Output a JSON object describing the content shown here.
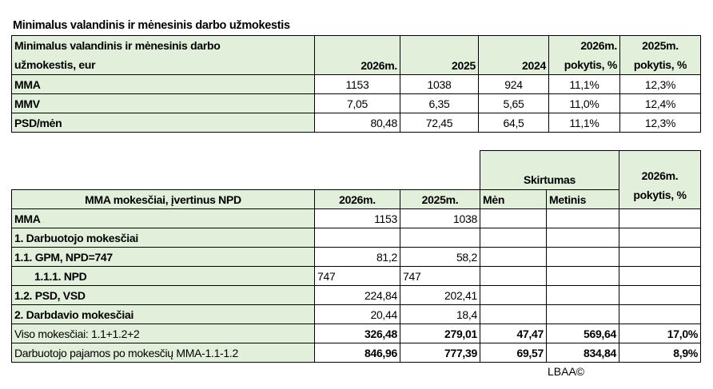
{
  "title": "Minimalus valandinis ir mėnesinis darbo užmokestis",
  "table1": {
    "header": {
      "label_line1": "Minimalus valandinis ir mėnesinis darbo",
      "label_line2": "užmokestis, eur",
      "c1": "2026m.",
      "c2": "2025",
      "c3": "2024",
      "c4_line1": "2026m.",
      "c4_line2": "pokytis, %",
      "c5_line1": "2025m.",
      "c5_line2": "pokytis, %"
    },
    "rows": [
      {
        "label": "MMA",
        "v": [
          "1153",
          "1038",
          "924",
          "11,1%",
          "12,3%"
        ]
      },
      {
        "label": "MMV",
        "v": [
          "7,05",
          "6,35",
          "5,65",
          "11,0%",
          "12,4%"
        ]
      },
      {
        "label": "PSD/mėn",
        "v": [
          "80,48",
          "72,45",
          "64,5",
          "11,1%",
          "12,3%"
        ]
      }
    ]
  },
  "table2": {
    "header": {
      "skirtumas": "Skirtumas",
      "change_line1": "2026m.",
      "change_line2": "pokytis, %",
      "label": "MMA mokesčiai, įvertinus NPD",
      "c1": "2026m.",
      "c2": "2025m.",
      "men": "Mėn",
      "metinis": "Metinis"
    },
    "rows": [
      {
        "label": "MMA",
        "v": [
          "1153",
          "1038",
          "",
          "",
          ""
        ]
      },
      {
        "label": "1. Darbuotojo mokesčiai",
        "v": [
          "",
          "",
          "",
          "",
          ""
        ]
      },
      {
        "label": "1.1. GPM, NPD=747",
        "v": [
          "81,2",
          "58,2",
          "",
          "",
          ""
        ]
      },
      {
        "label": "1.1.1. NPD",
        "v": [
          "747",
          "747",
          "",
          "",
          ""
        ]
      },
      {
        "label": "1.2. PSD, VSD",
        "v": [
          "224,84",
          "202,41",
          "",
          "",
          ""
        ]
      },
      {
        "label": "2. Darbdavio mokesčiai",
        "v": [
          "20,44",
          "18,4",
          "",
          "",
          ""
        ]
      },
      {
        "label": "Viso mokesčiai: 1.1+1.2+2",
        "v": [
          "326,48",
          "279,01",
          "47,47",
          "569,64",
          "17,0%"
        ]
      },
      {
        "label": "Darbuotojo pajamos po mokesčių MMA-1.1-1.2",
        "v": [
          "846,96",
          "777,39",
          "69,57",
          "834,84",
          "8,9%"
        ]
      }
    ]
  },
  "footer": "LBAA©"
}
